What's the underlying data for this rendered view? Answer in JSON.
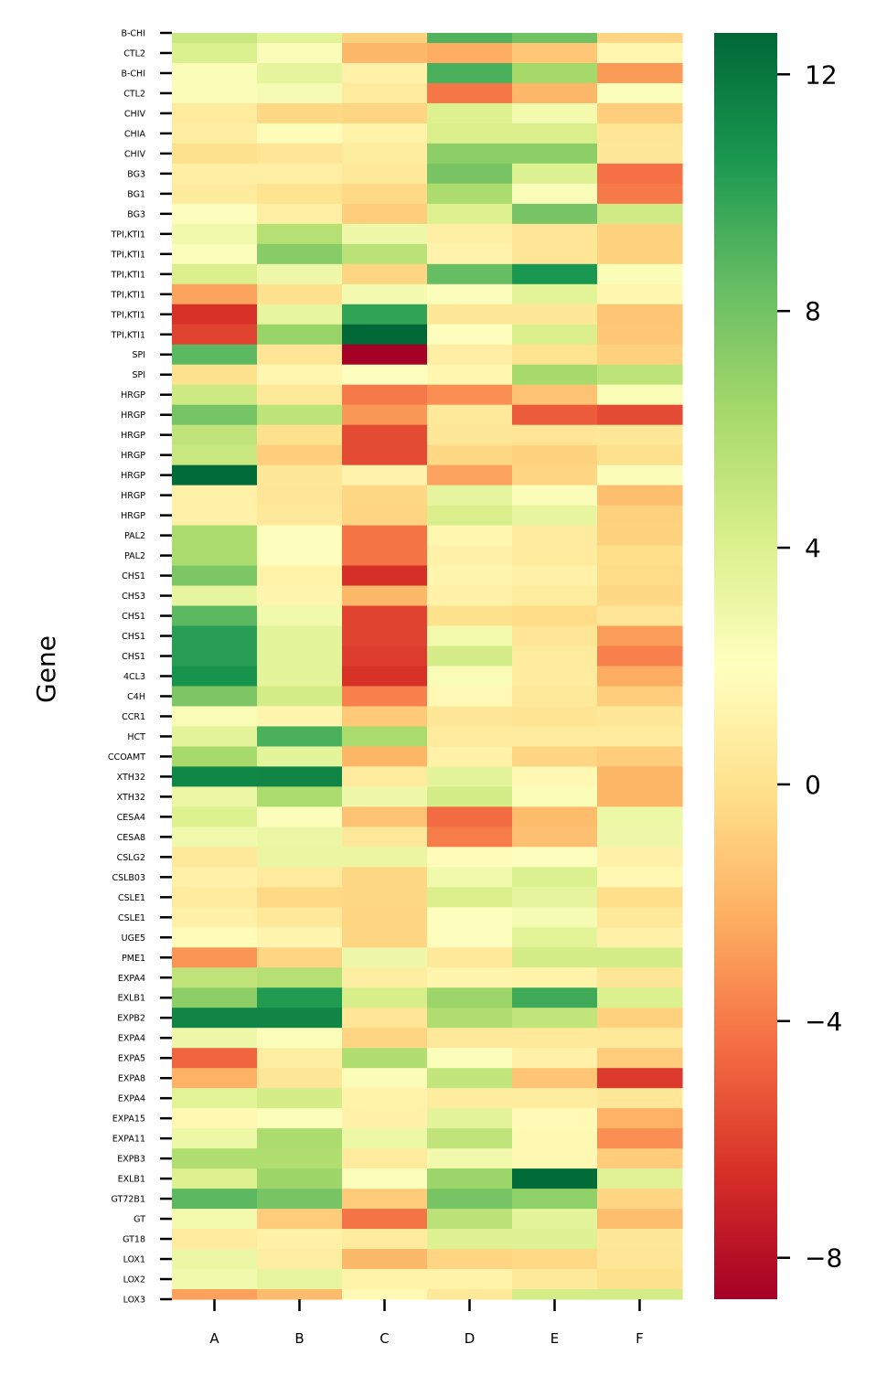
{
  "chart_data": {
    "type": "heatmap",
    "title": "",
    "xlabel": "",
    "ylabel": "Gene",
    "colormap": "RdYlGn",
    "vmin": -8.7,
    "vmax": 12.7,
    "colorbar": {
      "ticks": [
        12,
        8,
        4,
        0,
        -4,
        -8
      ],
      "tick_labels": [
        "12",
        "8",
        "4",
        "0",
        "−4",
        "−8"
      ]
    },
    "columns": [
      "A",
      "B",
      "C",
      "D",
      "E",
      "F"
    ],
    "rows": [
      "B-CHI",
      "CTL2",
      "B-CHI",
      "CTL2",
      "CHIV",
      "CHIA",
      "CHIV",
      "BG3",
      "BG1",
      "BG3",
      "TPI,KTI1",
      "TPI,KTI1",
      "TPI,KTI1",
      "TPI,KTI1",
      "TPI,KTI1",
      "TPI,KTI1",
      "SPI",
      "SPI",
      "HRGP",
      "HRGP",
      "HRGP",
      "HRGP",
      "HRGP",
      "HRGP",
      "HRGP",
      "PAL2",
      "PAL2",
      "CHS1",
      "CHS3",
      "CHS1",
      "CHS1",
      "CHS1",
      "4CL3",
      "C4H",
      "CCR1",
      "HCT",
      "CCOAMT",
      "XTH32",
      "XTH32",
      "CESA4",
      "CESA8",
      "CSLG2",
      "CSLB03",
      "CSLE1",
      "CSLE1",
      "UGE5",
      "PME1",
      "EXPA4",
      "EXLB1",
      "EXPB2",
      "EXPA4",
      "EXPA5",
      "EXPA8",
      "EXPA4",
      "EXPA15",
      "EXPA11",
      "EXPB3",
      "EXLB1",
      "GT72B1",
      "GT",
      "GT18",
      "LOX1",
      "LOX2",
      "LOX3"
    ],
    "values": [
      [
        4.8,
        3.6,
        -0.8,
        9.0,
        8.0,
        -0.6
      ],
      [
        4.0,
        2.3,
        -1.8,
        -2.3,
        -1.2,
        1.4
      ],
      [
        2.3,
        3.4,
        1.0,
        9.2,
        6.3,
        -2.9
      ],
      [
        2.3,
        2.5,
        0.6,
        -4.1,
        -1.9,
        2.2
      ],
      [
        0.6,
        -0.5,
        -0.6,
        3.9,
        2.7,
        -0.9
      ],
      [
        0.8,
        1.7,
        1.1,
        4.1,
        4.1,
        0.3
      ],
      [
        -0.1,
        0.3,
        0.7,
        7.1,
        7.1,
        0.4
      ],
      [
        0.9,
        0.9,
        0.5,
        7.8,
        3.8,
        -4.3
      ],
      [
        0.6,
        0.1,
        -0.4,
        6.0,
        2.3,
        -4.0
      ],
      [
        2.1,
        0.9,
        -0.9,
        3.9,
        7.8,
        4.5
      ],
      [
        2.8,
        5.6,
        2.9,
        0.9,
        0.3,
        -0.7
      ],
      [
        2.2,
        7.3,
        5.4,
        1.2,
        0.3,
        -0.7
      ],
      [
        4.1,
        2.9,
        -0.6,
        8.4,
        10.6,
        2.3
      ],
      [
        -2.6,
        0.0,
        2.6,
        2.2,
        3.6,
        1.4
      ],
      [
        -6.5,
        3.3,
        9.9,
        0.4,
        0.4,
        -1.3
      ],
      [
        -5.9,
        6.7,
        12.7,
        1.9,
        4.1,
        -1.2
      ],
      [
        8.7,
        0.3,
        -8.7,
        0.9,
        0.1,
        -0.8
      ],
      [
        0.0,
        1.4,
        2.1,
        1.4,
        6.2,
        5.3
      ],
      [
        4.6,
        0.5,
        -4.0,
        -3.3,
        -1.4,
        2.4
      ],
      [
        7.9,
        5.3,
        -3.0,
        0.5,
        -5.0,
        -5.6
      ],
      [
        5.2,
        -0.1,
        -5.6,
        0.4,
        0.3,
        0.4
      ],
      [
        4.8,
        -0.9,
        -5.6,
        -0.5,
        -0.7,
        -0.1
      ],
      [
        12.5,
        0.4,
        1.2,
        -2.6,
        -0.6,
        2.3
      ],
      [
        1.0,
        0.3,
        -0.5,
        3.4,
        2.3,
        -1.6
      ],
      [
        1.0,
        0.5,
        -0.6,
        4.1,
        3.3,
        -0.8
      ],
      [
        6.0,
        2.1,
        -4.2,
        1.4,
        0.6,
        -0.7
      ],
      [
        6.0,
        2.1,
        -4.2,
        1.0,
        0.6,
        -0.2
      ],
      [
        7.7,
        1.1,
        -6.6,
        1.3,
        1.0,
        -0.3
      ],
      [
        3.3,
        1.3,
        -1.8,
        1.0,
        0.7,
        -0.5
      ],
      [
        8.7,
        2.8,
        -5.9,
        0.0,
        -0.3,
        0.3
      ],
      [
        10.2,
        3.5,
        -5.9,
        2.7,
        0.3,
        -2.8
      ],
      [
        10.2,
        3.5,
        -6.1,
        4.3,
        0.6,
        -3.8
      ],
      [
        10.8,
        3.5,
        -6.5,
        2.4,
        0.6,
        -2.3
      ],
      [
        7.7,
        4.3,
        -3.8,
        1.6,
        0.5,
        -0.9
      ],
      [
        2.4,
        1.3,
        -1.1,
        0.4,
        0.2,
        0.4
      ],
      [
        3.5,
        9.2,
        6.1,
        0.6,
        0.6,
        0.6
      ],
      [
        6.2,
        3.5,
        -2.0,
        1.0,
        -0.6,
        -0.9
      ],
      [
        11.3,
        11.4,
        0.6,
        3.5,
        1.5,
        -2.0
      ],
      [
        3.1,
        6.0,
        2.9,
        4.3,
        2.3,
        -2.0
      ],
      [
        3.9,
        2.2,
        -1.4,
        -4.5,
        -1.7,
        3.0
      ],
      [
        2.8,
        3.1,
        0.5,
        -3.9,
        -1.5,
        2.9
      ],
      [
        0.5,
        3.2,
        3.2,
        1.8,
        2.1,
        1.0
      ],
      [
        1.0,
        0.6,
        -0.5,
        2.8,
        4.0,
        1.5
      ],
      [
        0.6,
        -0.4,
        -0.5,
        4.1,
        3.4,
        -0.2
      ],
      [
        1.0,
        0.5,
        -0.6,
        2.1,
        2.5,
        0.5
      ],
      [
        1.8,
        1.3,
        -0.6,
        2.1,
        3.6,
        1.0
      ],
      [
        -3.1,
        -0.6,
        2.9,
        0.5,
        4.3,
        4.3
      ],
      [
        5.2,
        5.6,
        0.8,
        1.3,
        1.1,
        0.3
      ],
      [
        7.1,
        10.4,
        4.2,
        6.6,
        9.5,
        4.0
      ],
      [
        11.4,
        11.4,
        0.3,
        5.9,
        5.1,
        -0.8
      ],
      [
        2.9,
        2.2,
        -0.6,
        0.5,
        0.5,
        0.5
      ],
      [
        -4.7,
        0.8,
        5.8,
        2.2,
        1.0,
        -1.0
      ],
      [
        -2.1,
        0.4,
        2.3,
        5.1,
        -1.3,
        -6.2
      ],
      [
        3.6,
        4.3,
        1.1,
        0.7,
        0.7,
        0.4
      ],
      [
        1.5,
        2.2,
        1.0,
        3.5,
        1.6,
        -2.1
      ],
      [
        3.0,
        6.0,
        3.0,
        5.2,
        1.5,
        -3.3
      ],
      [
        5.8,
        5.8,
        0.6,
        2.8,
        1.5,
        -1.0
      ],
      [
        3.9,
        6.5,
        2.2,
        6.6,
        12.5,
        3.7
      ],
      [
        8.7,
        7.8,
        -1.0,
        7.8,
        7.0,
        -0.6
      ],
      [
        2.7,
        -1.0,
        -4.2,
        5.4,
        3.5,
        -1.6
      ],
      [
        0.6,
        1.0,
        0.6,
        3.8,
        3.8,
        0.4
      ],
      [
        3.1,
        0.8,
        -1.8,
        -0.6,
        -0.4,
        0.3
      ],
      [
        2.8,
        3.3,
        1.1,
        1.1,
        0.5,
        -0.1
      ],
      [
        -2.7,
        -1.7,
        1.6,
        0.5,
        4.4,
        4.4
      ]
    ]
  }
}
